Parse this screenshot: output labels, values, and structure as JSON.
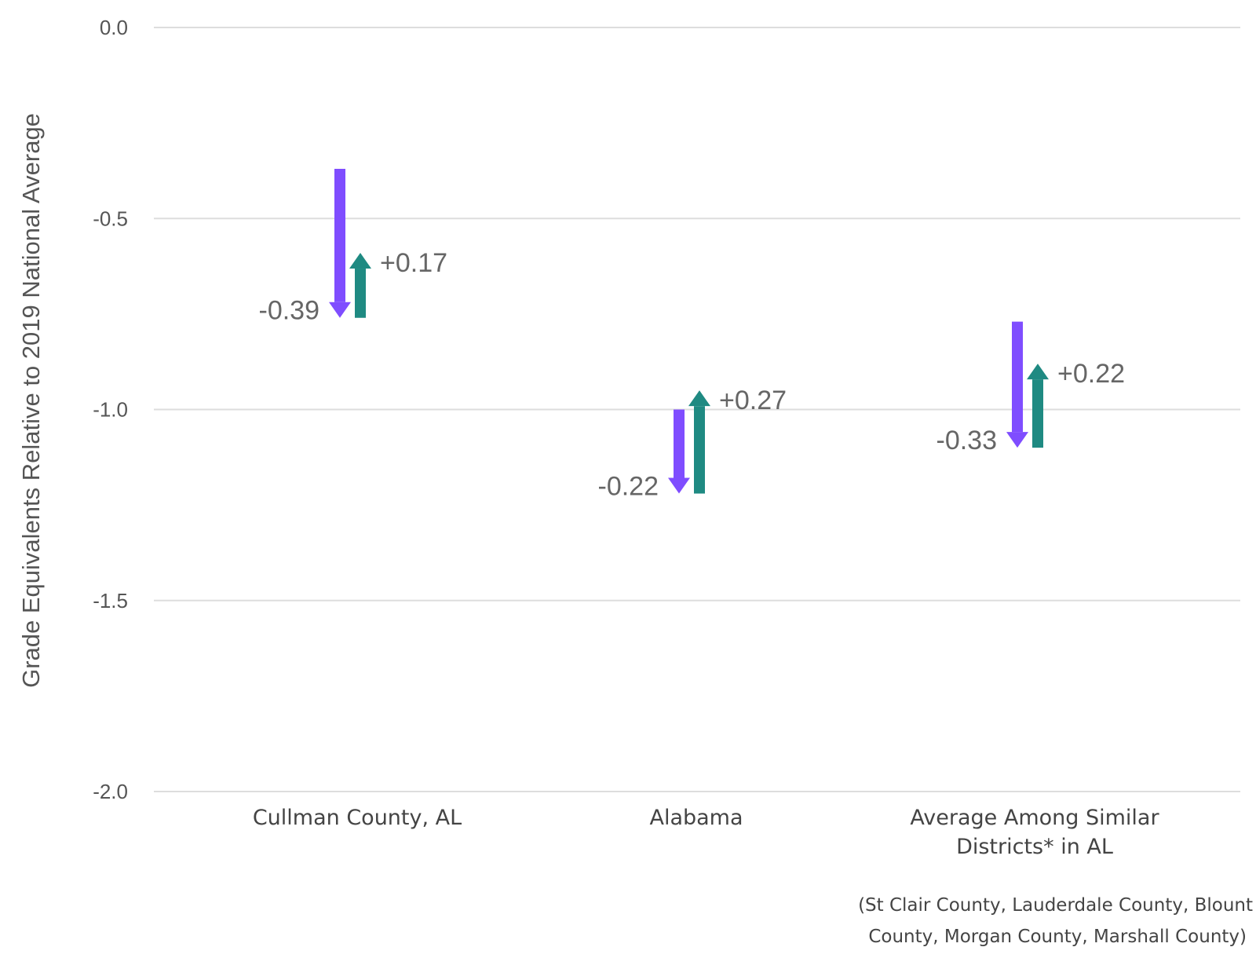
{
  "chart_data": {
    "type": "bar",
    "ylabel": "Grade Equivalents Relative to 2019 National Average",
    "ylim": [
      -2.0,
      0.0
    ],
    "yticks": [
      0.0,
      -0.5,
      -1.0,
      -1.5,
      -2.0
    ],
    "ytick_labels": [
      "0.0",
      "-0.5",
      "-1.0",
      "-1.5",
      "-2.0"
    ],
    "grid": true,
    "colors": {
      "decline": "#7f4dff",
      "recovery": "#1f8a82"
    },
    "categories": [
      {
        "lines": [
          "Cullman County, AL"
        ],
        "start": -0.37,
        "decline": -0.39,
        "recovery": 0.17,
        "decline_label": "-0.39",
        "recovery_label": "+0.17"
      },
      {
        "lines": [
          "Alabama"
        ],
        "start": -1.0,
        "decline": -0.22,
        "recovery": 0.27,
        "decline_label": "-0.22",
        "recovery_label": "+0.27"
      },
      {
        "lines": [
          "Average Among Similar",
          "Districts* in AL"
        ],
        "start": -0.77,
        "decline": -0.33,
        "recovery": 0.22,
        "decline_label": "-0.33",
        "recovery_label": "+0.22"
      }
    ],
    "footnote_lines": [
      "(St Clair County, Lauderdale County, Blount",
      "County, Morgan County, Marshall County)"
    ]
  }
}
